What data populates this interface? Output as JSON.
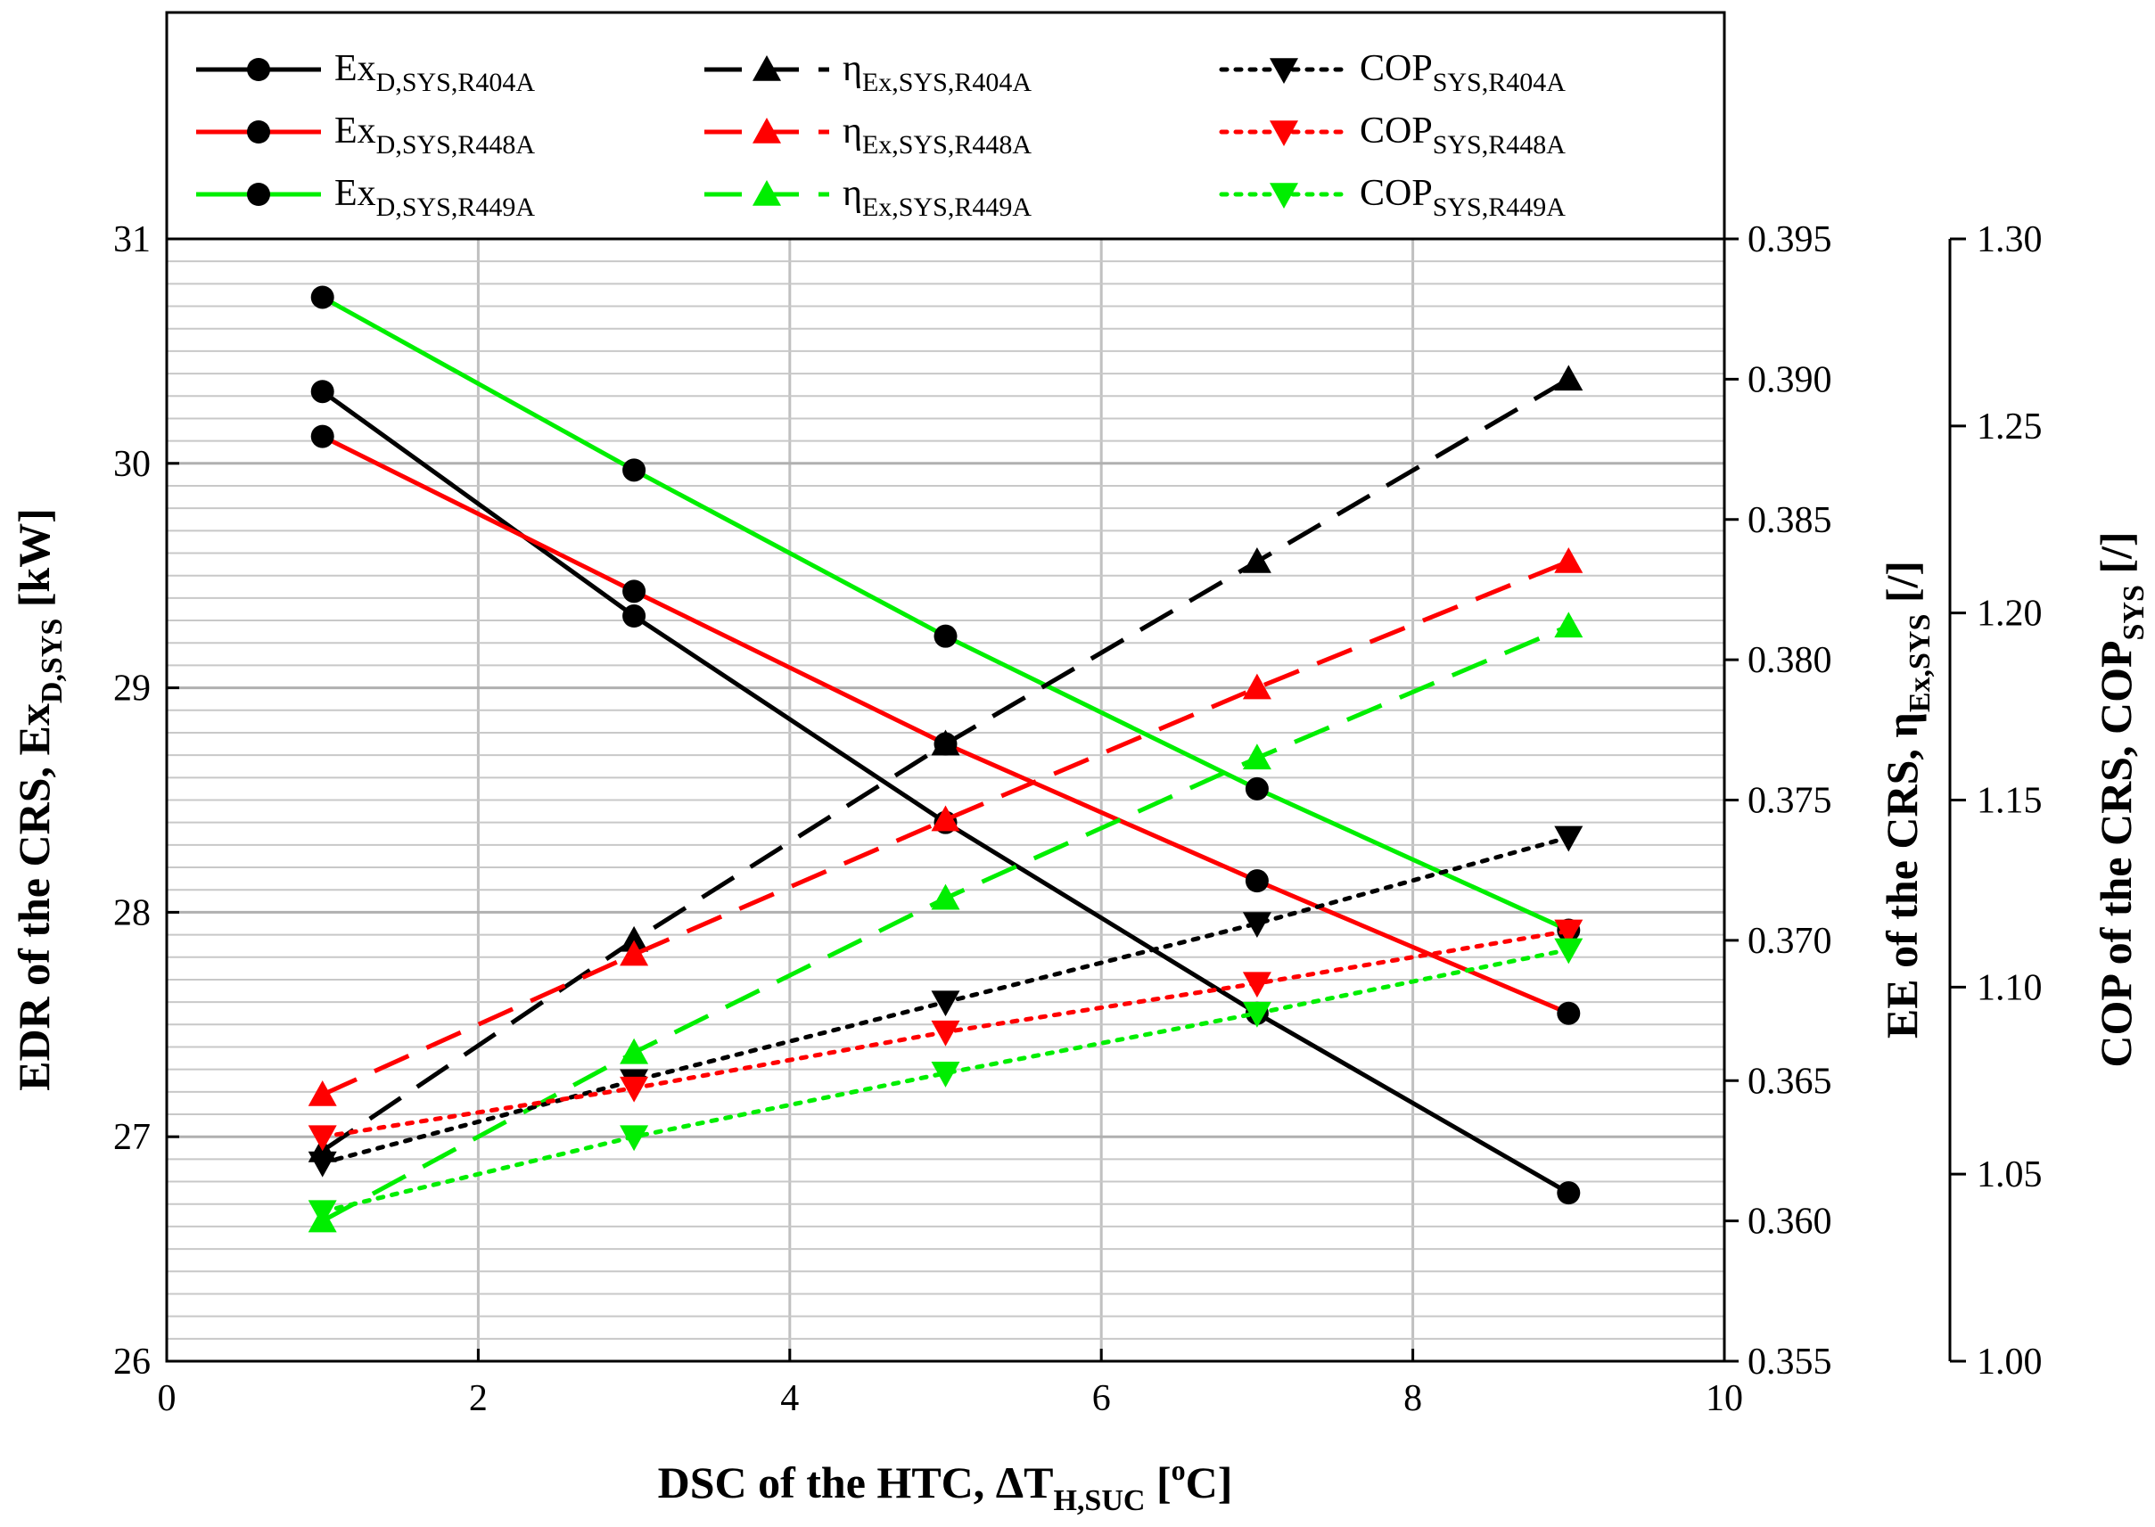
{
  "chart_data": {
    "type": "line",
    "x_axis": {
      "label_main": "DSC of the HTC, ΔT",
      "label_sub": "H,SUC",
      "label_unit": " [",
      "label_unit_sup": "o",
      "label_unit_end": "C]",
      "range": [
        0,
        10
      ],
      "ticks": [
        "0",
        "2",
        "4",
        "6",
        "8",
        "10"
      ]
    },
    "y_left": {
      "label_main": "EDR of the CRS, Ex",
      "label_sub": "D,SYS",
      "label_unit": " [kW]",
      "range": [
        26,
        31
      ],
      "ticks": [
        "26",
        "27",
        "28",
        "29",
        "30",
        "31"
      ]
    },
    "y_right1": {
      "label_main": "EE of the CRS, η",
      "label_sub": "Ex,SYS",
      "label_unit": " [/]",
      "range": [
        0.355,
        0.395
      ],
      "ticks": [
        "0.355",
        "0.360",
        "0.365",
        "0.370",
        "0.375",
        "0.380",
        "0.385",
        "0.390",
        "0.395"
      ]
    },
    "y_right2": {
      "label_main": "COP of the CRS, COP",
      "label_sub": "SYS",
      "label_unit": " [/]",
      "range": [
        1.0,
        1.3
      ],
      "ticks": [
        "1.00",
        "1.05",
        "1.10",
        "1.15",
        "1.20",
        "1.25",
        "1.30"
      ]
    },
    "x": [
      1,
      3,
      5,
      7,
      9
    ],
    "series": [
      {
        "name": "Ex",
        "sub": "D,SYS,R404A",
        "axis": "left",
        "color": "#000000",
        "style": "solid",
        "marker": "circle",
        "values": [
          30.32,
          29.32,
          28.4,
          27.55,
          26.75
        ]
      },
      {
        "name": "Ex",
        "sub": "D,SYS,R448A",
        "axis": "left",
        "color": "#ff0000",
        "style": "solid",
        "marker": "circle",
        "values": [
          30.12,
          29.43,
          28.75,
          28.14,
          27.55
        ]
      },
      {
        "name": "Ex",
        "sub": "D,SYS,R449A",
        "axis": "left",
        "color": "#00ee00",
        "style": "solid",
        "marker": "circle",
        "values": [
          30.74,
          29.97,
          29.23,
          28.55,
          27.92
        ]
      },
      {
        "name": "η",
        "sub": "Ex,SYS,R404A",
        "axis": "right1",
        "color": "#000000",
        "style": "dashed",
        "marker": "triangle-up",
        "values": [
          0.3625,
          0.37,
          0.377,
          0.3835,
          0.39
        ]
      },
      {
        "name": "η",
        "sub": "Ex,SYS,R448A",
        "axis": "right1",
        "color": "#ff0000",
        "style": "dashed",
        "marker": "triangle-up",
        "values": [
          0.3645,
          0.3695,
          0.3743,
          0.379,
          0.3835
        ]
      },
      {
        "name": "η",
        "sub": "Ex,SYS,R449A",
        "axis": "right1",
        "color": "#00ee00",
        "style": "dashed",
        "marker": "triangle-up",
        "values": [
          0.36,
          0.366,
          0.3715,
          0.3765,
          0.3812
        ]
      },
      {
        "name": "COP",
        "sub": "SYS,R404A",
        "axis": "right2",
        "color": "#000000",
        "style": "dotted",
        "marker": "triangle-down",
        "values": [
          1.053,
          1.075,
          1.096,
          1.117,
          1.14
        ]
      },
      {
        "name": "COP",
        "sub": "SYS,R448A",
        "axis": "right2",
        "color": "#ff0000",
        "style": "dotted",
        "marker": "triangle-down",
        "values": [
          1.06,
          1.073,
          1.088,
          1.101,
          1.115
        ]
      },
      {
        "name": "COP",
        "sub": "SYS,R449A",
        "axis": "right2",
        "color": "#00ee00",
        "style": "dotted",
        "marker": "triangle-down",
        "values": [
          1.04,
          1.06,
          1.077,
          1.093,
          1.11
        ]
      }
    ],
    "legend_position": "top",
    "grid": true
  }
}
